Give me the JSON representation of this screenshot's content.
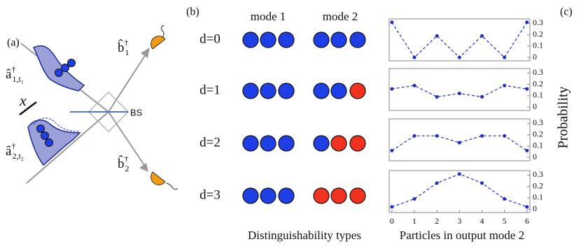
{
  "panel_a": {
    "label": "(a)",
    "input_1": {
      "base": "â",
      "sup": "†",
      "sub": "1,t₁"
    },
    "input_2": {
      "base": "â",
      "sup": "†",
      "sub": "2,t₂"
    },
    "output_1": {
      "base": "b̂",
      "sup": "†",
      "sub": "1"
    },
    "output_2": {
      "base": "b̂",
      "sup": "†",
      "sub": "2"
    },
    "delay": "x",
    "splitter": "BS"
  },
  "panel_b": {
    "label": "(b)",
    "mode_1": "mode 1",
    "mode_2": "mode 2",
    "caption": "Distinguishability types",
    "rows": [
      {
        "label": "d=0",
        "colors": [
          "#1f3fe6",
          "#1f3fe6",
          "#1f3fe6",
          "#1f3fe6",
          "#1f3fe6",
          "#1f3fe6"
        ]
      },
      {
        "label": "d=1",
        "colors": [
          "#1f3fe6",
          "#1f3fe6",
          "#1f3fe6",
          "#1f3fe6",
          "#1f3fe6",
          "#f0321e"
        ]
      },
      {
        "label": "d=2",
        "colors": [
          "#1f3fe6",
          "#1f3fe6",
          "#1f3fe6",
          "#1f3fe6",
          "#f0321e",
          "#f0321e"
        ]
      },
      {
        "label": "d=3",
        "colors": [
          "#1f3fe6",
          "#1f3fe6",
          "#1f3fe6",
          "#f0321e",
          "#f0321e",
          "#f0321e"
        ]
      }
    ]
  },
  "panel_c": {
    "label": "(c)",
    "y_label": "Probability",
    "x_label": "Particles in output mode 2"
  },
  "chart_data": [
    {
      "type": "line",
      "x": [
        0,
        1,
        2,
        3,
        4,
        5,
        6
      ],
      "values": [
        0.31,
        0,
        0.19,
        0,
        0.19,
        0,
        0.31
      ],
      "color": "#1f2fbf",
      "xlim": [
        -0.12,
        6.13
      ],
      "ylim": [
        -0.03,
        0.34
      ],
      "yticks": [
        0,
        0.1,
        0.2,
        0.3
      ]
    },
    {
      "type": "line",
      "x": [
        0,
        1,
        2,
        3,
        4,
        5,
        6
      ],
      "values": [
        0.16,
        0.19,
        0.09,
        0.12,
        0.09,
        0.19,
        0.16
      ],
      "color": "#1f2fbf",
      "xlim": [
        -0.12,
        6.13
      ],
      "ylim": [
        -0.03,
        0.34
      ],
      "yticks": [
        0,
        0.1,
        0.2,
        0.3
      ]
    },
    {
      "type": "line",
      "x": [
        0,
        1,
        2,
        3,
        4,
        5,
        6
      ],
      "values": [
        0.06,
        0.19,
        0.19,
        0.13,
        0.19,
        0.19,
        0.06
      ],
      "color": "#1f2fbf",
      "xlim": [
        -0.12,
        6.13
      ],
      "ylim": [
        -0.03,
        0.34
      ],
      "yticks": [
        0,
        0.1,
        0.2,
        0.3
      ]
    },
    {
      "type": "line",
      "x": [
        0,
        1,
        2,
        3,
        4,
        5,
        6
      ],
      "values": [
        0.02,
        0.09,
        0.23,
        0.31,
        0.23,
        0.09,
        0.02
      ],
      "color": "#1f2fbf",
      "xlim": [
        -0.12,
        6.13
      ],
      "ylim": [
        -0.03,
        0.34
      ],
      "yticks": [
        0,
        0.1,
        0.2,
        0.3
      ],
      "xticks": [
        0,
        1,
        2,
        3,
        4,
        5,
        6
      ]
    }
  ]
}
